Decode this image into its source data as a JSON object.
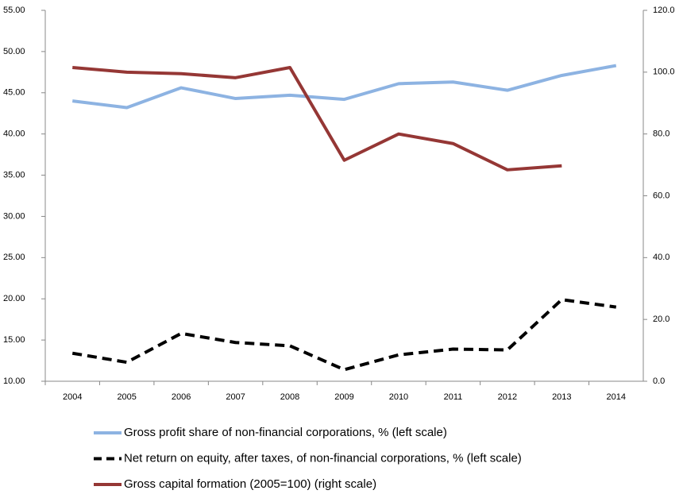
{
  "chart_data": {
    "type": "line",
    "categories": [
      "2004",
      "2005",
      "2006",
      "2007",
      "2008",
      "2009",
      "2010",
      "2011",
      "2012",
      "2013",
      "2014"
    ],
    "series": [
      {
        "name": "Gross profit share of non-financial corporations, % (left scale)",
        "color": "#8db3e2",
        "dash": "solid",
        "axis": "y",
        "values": [
          44.0,
          43.2,
          45.6,
          44.3,
          44.7,
          44.2,
          46.1,
          46.3,
          45.3,
          47.1,
          48.3
        ]
      },
      {
        "name": "Net return on equity, after taxes, of non-financial corporations, %  (left scale)",
        "color": "#000000",
        "dash": "dashed",
        "axis": "y",
        "values": [
          13.4,
          12.3,
          15.8,
          14.7,
          14.3,
          11.4,
          13.2,
          13.9,
          13.8,
          19.9,
          19.0
        ]
      },
      {
        "name": "Gross capital formation (2005=100) (right scale)",
        "color": "#953735",
        "dash": "solid",
        "axis": "y2",
        "values": [
          101.5,
          100.0,
          99.5,
          98.2,
          101.5,
          71.5,
          80.0,
          76.9,
          68.4,
          69.7,
          null
        ]
      }
    ],
    "ylim": [
      10,
      55
    ],
    "yticks": [
      {
        "value": 10,
        "label": "10.00"
      },
      {
        "value": 15,
        "label": "15.00"
      },
      {
        "value": 20,
        "label": "20.00"
      },
      {
        "value": 25,
        "label": "25.00"
      },
      {
        "value": 30,
        "label": "30.00"
      },
      {
        "value": 35,
        "label": "35.00"
      },
      {
        "value": 40,
        "label": "40.00"
      },
      {
        "value": 45,
        "label": "45.00"
      },
      {
        "value": 50,
        "label": "50.00"
      },
      {
        "value": 55,
        "label": "55.00"
      }
    ],
    "y2lim": [
      0,
      120
    ],
    "y2ticks": [
      {
        "value": 0,
        "label": "0.0"
      },
      {
        "value": 20,
        "label": "20.0"
      },
      {
        "value": 40,
        "label": "40.0"
      },
      {
        "value": 60,
        "label": "60.0"
      },
      {
        "value": 80,
        "label": "80.0"
      },
      {
        "value": 100,
        "label": "100.0"
      },
      {
        "value": 120,
        "label": "120.0"
      }
    ],
    "legend": "bottom"
  }
}
